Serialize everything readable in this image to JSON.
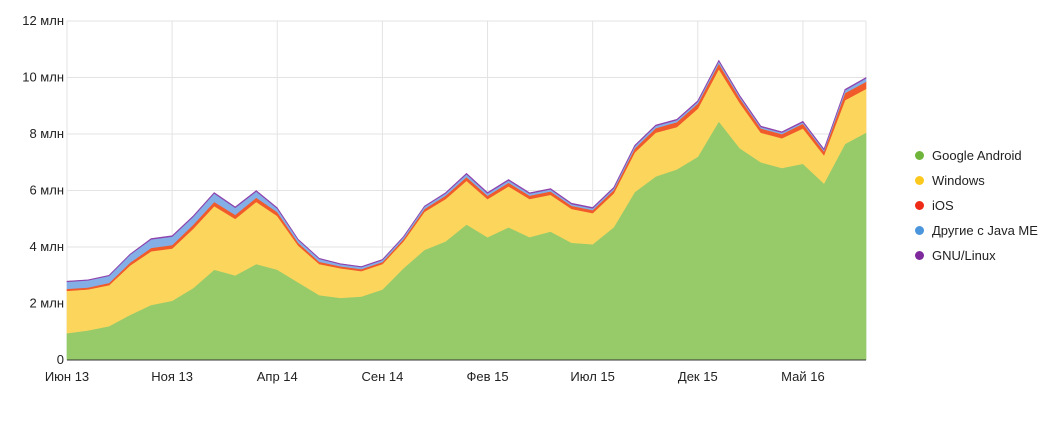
{
  "chart_data": {
    "type": "area",
    "stacked": true,
    "x_ticks": [
      {
        "index": 0,
        "label": "Июн 13"
      },
      {
        "index": 5,
        "label": "Ноя 13"
      },
      {
        "index": 10,
        "label": "Апр 14"
      },
      {
        "index": 15,
        "label": "Сен 14"
      },
      {
        "index": 20,
        "label": "Фев 15"
      },
      {
        "index": 25,
        "label": "Июл 15"
      },
      {
        "index": 30,
        "label": "Дек 15"
      },
      {
        "index": 35,
        "label": "Май 16"
      }
    ],
    "y_ticks": [
      {
        "value": 0,
        "label": "0"
      },
      {
        "value": 2,
        "label": "2 млн"
      },
      {
        "value": 4,
        "label": "4 млн"
      },
      {
        "value": 6,
        "label": "6 млн"
      },
      {
        "value": 8,
        "label": "8 млн"
      },
      {
        "value": 10,
        "label": "10 млн"
      },
      {
        "value": 12,
        "label": "12 млн"
      }
    ],
    "ylim": [
      0,
      12
    ],
    "grid": true,
    "legend_position": "right",
    "series": [
      {
        "name": "Google Android",
        "color": "#97cb6a",
        "values": [
          0.95,
          1.05,
          1.2,
          1.6,
          1.95,
          2.1,
          2.55,
          3.2,
          3.0,
          3.4,
          3.2,
          2.75,
          2.3,
          2.2,
          2.25,
          2.5,
          3.25,
          3.9,
          4.2,
          4.8,
          4.35,
          4.7,
          4.35,
          4.55,
          4.15,
          4.1,
          4.7,
          5.95,
          6.5,
          6.75,
          7.2,
          8.45,
          7.5,
          7.0,
          6.8,
          6.95,
          6.25,
          7.65,
          8.05
        ]
      },
      {
        "name": "Windows",
        "color": "#fcd55d",
        "values": [
          1.5,
          1.45,
          1.45,
          1.75,
          1.9,
          1.85,
          2.1,
          2.25,
          2.0,
          2.2,
          1.9,
          1.3,
          1.1,
          1.05,
          0.9,
          0.9,
          0.95,
          1.35,
          1.5,
          1.55,
          1.35,
          1.45,
          1.35,
          1.3,
          1.2,
          1.1,
          1.2,
          1.4,
          1.55,
          1.5,
          1.7,
          1.85,
          1.6,
          1.05,
          1.05,
          1.25,
          1.0,
          1.55,
          1.55
        ]
      },
      {
        "name": "iOS",
        "color": "#f15a2b",
        "values": [
          0.07,
          0.07,
          0.08,
          0.1,
          0.12,
          0.12,
          0.14,
          0.15,
          0.14,
          0.15,
          0.14,
          0.1,
          0.08,
          0.07,
          0.07,
          0.07,
          0.08,
          0.1,
          0.12,
          0.13,
          0.12,
          0.13,
          0.12,
          0.12,
          0.11,
          0.11,
          0.12,
          0.14,
          0.16,
          0.17,
          0.18,
          0.2,
          0.17,
          0.15,
          0.15,
          0.17,
          0.14,
          0.25,
          0.25
        ]
      },
      {
        "name": "Другие с Java ME",
        "color": "#84aee6",
        "values": [
          0.25,
          0.25,
          0.25,
          0.28,
          0.3,
          0.3,
          0.28,
          0.3,
          0.25,
          0.22,
          0.12,
          0.1,
          0.1,
          0.07,
          0.07,
          0.07,
          0.07,
          0.08,
          0.08,
          0.1,
          0.08,
          0.08,
          0.07,
          0.07,
          0.06,
          0.06,
          0.06,
          0.08,
          0.08,
          0.07,
          0.07,
          0.08,
          0.06,
          0.05,
          0.05,
          0.05,
          0.05,
          0.1,
          0.12
        ]
      },
      {
        "name": "GNU/Linux",
        "color": "#8e44ad",
        "values": [
          0.02,
          0.02,
          0.02,
          0.02,
          0.03,
          0.03,
          0.03,
          0.03,
          0.03,
          0.03,
          0.03,
          0.02,
          0.02,
          0.02,
          0.02,
          0.02,
          0.02,
          0.02,
          0.02,
          0.03,
          0.03,
          0.03,
          0.03,
          0.03,
          0.03,
          0.03,
          0.03,
          0.03,
          0.03,
          0.03,
          0.03,
          0.03,
          0.03,
          0.03,
          0.03,
          0.03,
          0.03,
          0.03,
          0.03
        ]
      }
    ],
    "legend_dot_colors": [
      "#6fb53b",
      "#fbc91e",
      "#ee2b17",
      "#4a95db",
      "#7f2a9c"
    ]
  }
}
